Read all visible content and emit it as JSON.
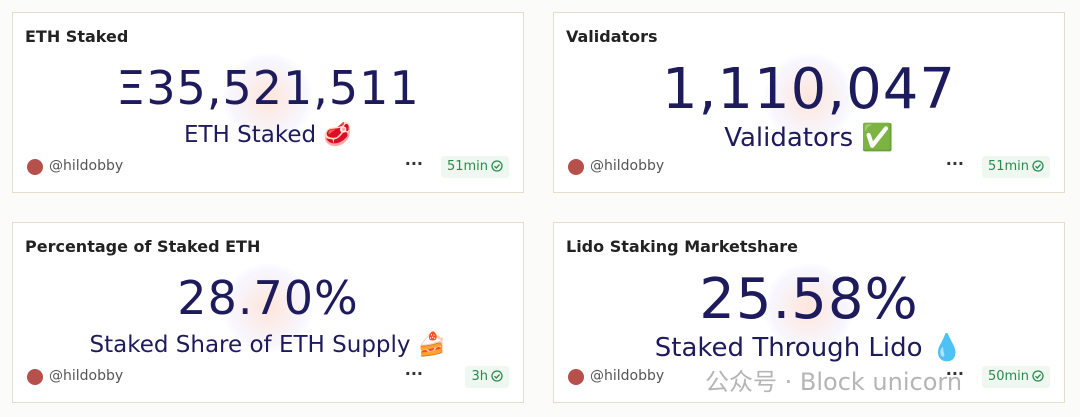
{
  "cards": [
    {
      "title": "ETH Staked",
      "value": "Ξ35,521,511",
      "subtitle": "ETH Staked 🥩",
      "author": "@hildobby",
      "age": "51min"
    },
    {
      "title": "Validators",
      "value": "1,110,047",
      "subtitle": "Validators ✅",
      "author": "@hildobby",
      "age": "51min"
    },
    {
      "title": "Percentage of Staked ETH",
      "value": "28.70%",
      "subtitle": "Staked Share of ETH Supply 🍰",
      "author": "@hildobby",
      "age": "3h"
    },
    {
      "title": "Lido Staking Marketshare",
      "value": "25.58%",
      "subtitle": "Staked Through Lido 💧",
      "author": "@hildobby",
      "age": "50min"
    }
  ],
  "watermark": "公众号 · Block unicorn"
}
